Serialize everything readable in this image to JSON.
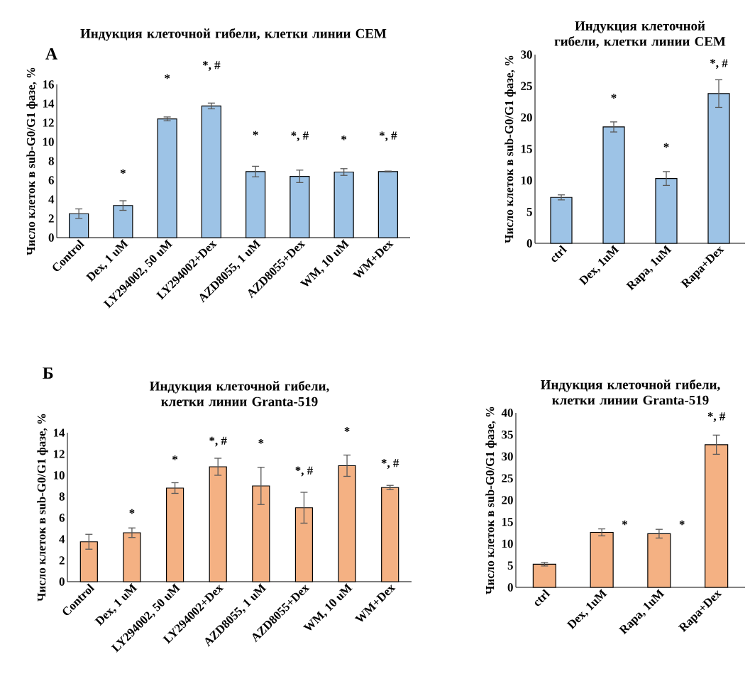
{
  "chart_data": [
    {
      "type": "bar",
      "title": "Индукция клеточной гибели, клетки линии CEM",
      "ylabel": "Число клеток в sub-G0/G1 фазе, %",
      "categories": [
        "Control",
        "Dex, 1 uM",
        "LY294002, 50 uM",
        "LY294002+Dex",
        "AZD8055, 1 uM",
        "AZD8055+Dex",
        "WM, 10 uM",
        "WM+Dex"
      ],
      "values": [
        2.5,
        3.35,
        12.4,
        13.75,
        6.9,
        6.4,
        6.85,
        6.9
      ],
      "errors": [
        0.5,
        0.5,
        0.2,
        0.3,
        0.55,
        0.65,
        0.35,
        0.05
      ],
      "color": "#9dc3e6",
      "ylim": [
        0,
        16
      ],
      "yticks": [
        0,
        2,
        4,
        6,
        8,
        10,
        12,
        14,
        16
      ],
      "annotations": [
        "А",
        "*",
        "*",
        "*, #",
        "*",
        "*, #",
        "*",
        "*, #"
      ]
    },
    {
      "type": "bar",
      "title": "Индукция клеточной гибели, клетки линии CEM",
      "ylabel": "Число клеток в sub-G0/G1 фазе, %",
      "categories": [
        "ctrl",
        "Dex, 1uM",
        "Rapa, 1uM",
        "Rapa+Dex"
      ],
      "values": [
        7.3,
        18.5,
        10.3,
        23.8
      ],
      "errors": [
        0.4,
        0.8,
        1.1,
        2.2
      ],
      "color": "#9dc3e6",
      "ylim": [
        0,
        30
      ],
      "yticks": [
        0,
        5,
        10,
        15,
        20,
        25,
        30
      ],
      "annotations": [
        "*",
        "*",
        "*, #"
      ]
    },
    {
      "type": "bar",
      "title": "Индукция клеточной гибели, клетки линии Granta-519",
      "ylabel": "Число клеток в sub-G0/G1 фазе, %",
      "categories": [
        "Control",
        "Dex, 1 uM",
        "LY294002, 50 uM",
        "LY294002+Dex",
        "AZD8055, 1 uM",
        "AZD8055+Dex",
        "WM, 10 uM",
        "WM+Dex"
      ],
      "values": [
        3.75,
        4.6,
        8.8,
        10.8,
        9.0,
        6.95,
        10.9,
        8.85
      ],
      "errors": [
        0.7,
        0.45,
        0.5,
        0.8,
        1.75,
        1.45,
        1.0,
        0.2
      ],
      "color": "#f4b183",
      "ylim": [
        0,
        14
      ],
      "yticks": [
        0,
        2,
        4,
        6,
        8,
        10,
        12,
        14
      ],
      "annotations": [
        "Б",
        "*",
        "*",
        "*, #",
        "*",
        "*, #",
        "*",
        "*, #"
      ]
    },
    {
      "type": "bar",
      "title": "Индукция клеточной гибели, клетки линии Granta-519",
      "ylabel": "Число клеток в sub-G0/G1 фазе, %",
      "categories": [
        "ctrl",
        "Dex, 1uM",
        "Rapa, 1uM",
        "Rapa+Dex"
      ],
      "values": [
        5.3,
        12.6,
        12.3,
        32.7
      ],
      "errors": [
        0.4,
        0.8,
        1.0,
        2.2
      ],
      "color": "#f4b183",
      "ylim": [
        0,
        40
      ],
      "yticks": [
        0,
        5,
        10,
        15,
        20,
        25,
        30,
        35,
        40
      ],
      "annotations": [
        "*",
        "*",
        "*, #"
      ]
    }
  ]
}
